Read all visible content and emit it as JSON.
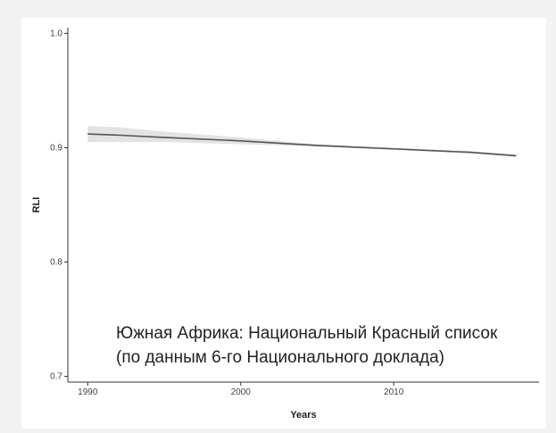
{
  "caption": "Южная Африка: Национальный Красный список (по данным 6-го Национального доклада)",
  "chart_data": {
    "type": "line",
    "title": "",
    "xlabel": "Years",
    "ylabel": "RLI",
    "xlim": [
      1988.7,
      2019.5
    ],
    "ylim": [
      0.695,
      1.005
    ],
    "x_ticks": [
      1990,
      2000,
      2010
    ],
    "x_tick_labels": [
      "1990",
      "2000",
      "2010"
    ],
    "y_ticks": [
      0.7,
      0.8,
      0.9,
      1.0
    ],
    "y_tick_labels": [
      "0.7",
      "0.8",
      "0.9",
      "1.0"
    ],
    "grid": false,
    "series": [
      {
        "x": [
          1990,
          1992,
          1995,
          2000,
          2005,
          2010,
          2015,
          2018
        ],
        "values": [
          0.912,
          0.911,
          0.909,
          0.906,
          0.902,
          0.899,
          0.896,
          0.893
        ],
        "ci_lower": [
          0.905,
          0.905,
          0.905,
          0.903,
          0.901,
          0.898,
          0.895,
          0.892
        ],
        "ci_upper": [
          0.919,
          0.918,
          0.914,
          0.909,
          0.903,
          0.9,
          0.897,
          0.894
        ],
        "color": "#555555",
        "band_color": "#e3e3e3"
      }
    ]
  }
}
